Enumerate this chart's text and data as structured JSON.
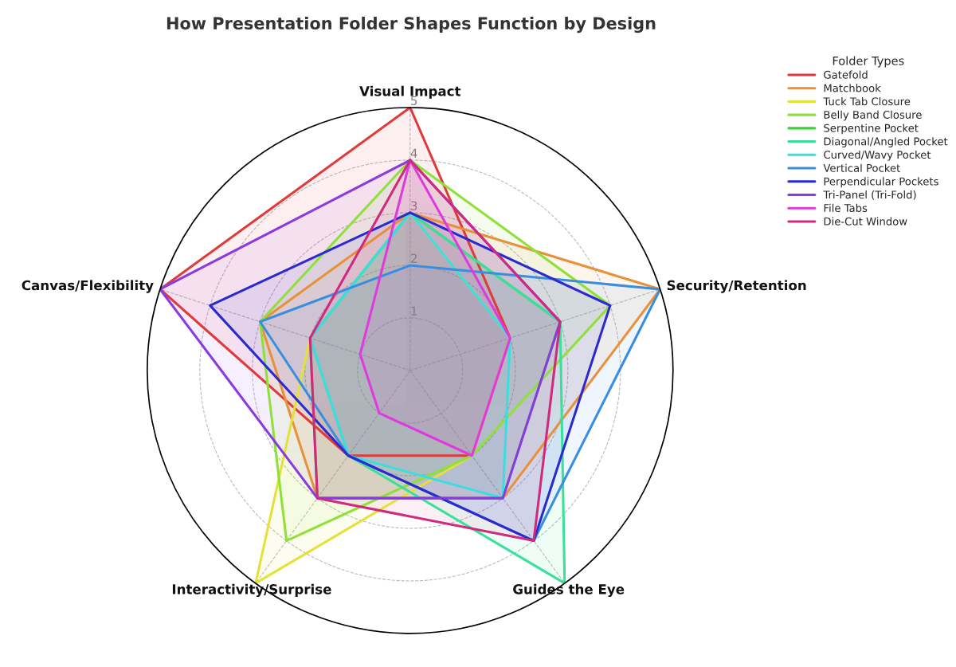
{
  "chart_data": {
    "type": "radar",
    "title": "How Presentation Folder Shapes Function by Design",
    "legend_title": "Folder Types",
    "categories": [
      "Visual Impact",
      "Security/Retention",
      "Guides the Eye",
      "Interactivity/Surprise",
      "Canvas/Flexibility"
    ],
    "ylim": [
      0,
      5
    ],
    "yticks": [
      1,
      2,
      3,
      4,
      5
    ],
    "grid": true,
    "legend": "top right",
    "line_style": "solid",
    "marker": "none",
    "series": [
      {
        "name": "Gatefold",
        "color": "#e03a3a",
        "values": [
          5,
          2,
          2,
          2,
          5
        ]
      },
      {
        "name": "Matchbook",
        "color": "#e8903a",
        "values": [
          3,
          5,
          3,
          3,
          3
        ]
      },
      {
        "name": "Tuck Tab Closure",
        "color": "#e6e03a",
        "values": [
          3,
          2,
          2,
          5,
          2
        ]
      },
      {
        "name": "Belly Band Closure",
        "color": "#90e03a",
        "values": [
          4,
          4,
          2,
          4,
          3
        ]
      },
      {
        "name": "Serpentine Pocket",
        "color": "#3ad03a",
        "values": [
          3,
          3,
          3,
          3,
          2
        ]
      },
      {
        "name": "Diagonal/Angled Pocket",
        "color": "#3ae09a",
        "values": [
          3,
          3,
          5,
          2,
          2
        ]
      },
      {
        "name": "Curved/Wavy Pocket",
        "color": "#3adede",
        "values": [
          3,
          2,
          3,
          2,
          2
        ]
      },
      {
        "name": "Vertical Pocket",
        "color": "#3a8ee0",
        "values": [
          2,
          5,
          4,
          2,
          3
        ]
      },
      {
        "name": "Perpendicular Pockets",
        "color": "#2a2ad0",
        "values": [
          3,
          4,
          4,
          2,
          4
        ]
      },
      {
        "name": "Tri-Panel (Tri-Fold)",
        "color": "#8a3ae0",
        "values": [
          4,
          3,
          3,
          3,
          5
        ]
      },
      {
        "name": "File Tabs",
        "color": "#de3ade",
        "values": [
          4,
          2,
          2,
          1,
          1
        ]
      },
      {
        "name": "Die-Cut Window",
        "color": "#d02a80",
        "values": [
          4,
          3,
          4,
          3,
          2
        ]
      }
    ]
  }
}
